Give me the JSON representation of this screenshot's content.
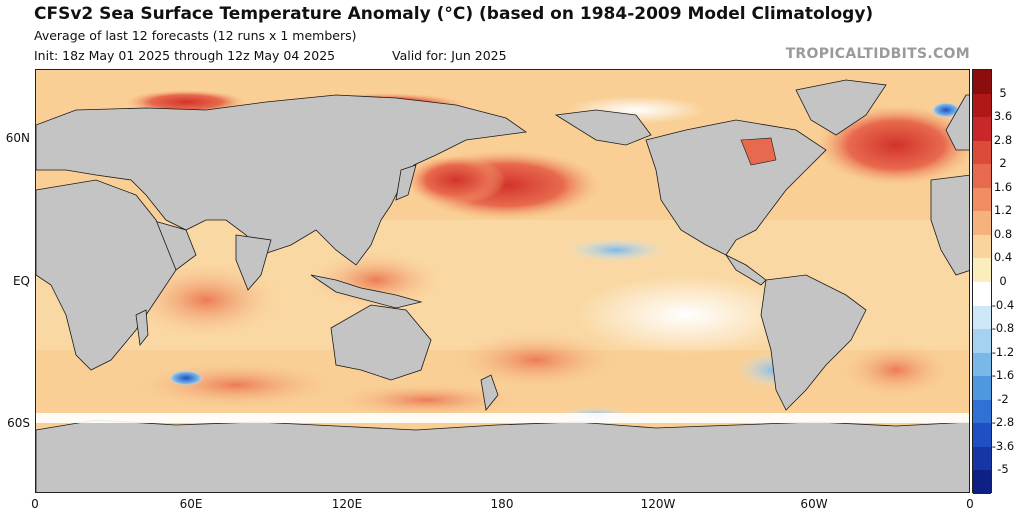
{
  "header": {
    "title": "CFSv2 Sea Surface Temperature Anomaly (°C) (based on 1984-2009 Model Climatology)",
    "subtitle": "Average of last 12 forecasts (12 runs x 1 members)",
    "init": "Init: 18z May 01 2025 through 12z May 04 2025",
    "valid": "Valid for: Jun 2025",
    "brand": "TROPICALTIDBITS.COM"
  },
  "axes": {
    "lat_labels": [
      "60N",
      "EQ",
      "60S"
    ],
    "lon_labels": [
      "0",
      "60E",
      "120E",
      "180",
      "120W",
      "60W",
      "0"
    ]
  },
  "colorbar": {
    "labels": [
      "5",
      "3.6",
      "2.8",
      "2",
      "1.6",
      "1.2",
      "0.8",
      "0.4",
      "0",
      "-0.4",
      "-0.8",
      "-1.2",
      "-1.6",
      "-2",
      "-2.8",
      "-3.6",
      "-5"
    ],
    "colors": [
      "#8b0d0d",
      "#b01818",
      "#c92828",
      "#dc4a3a",
      "#e86a4e",
      "#f08e62",
      "#f6b27c",
      "#fad49c",
      "#fbeebc",
      "#ffffff",
      "#cfe8f7",
      "#a6d2f1",
      "#7ab8ea",
      "#4f97df",
      "#2f72d3",
      "#1f4fc2",
      "#1636a6",
      "#0e1f85"
    ]
  },
  "colors": {
    "land": "#c4c4c4",
    "ice": "#ffffff",
    "border": "#1a1a1a"
  }
}
